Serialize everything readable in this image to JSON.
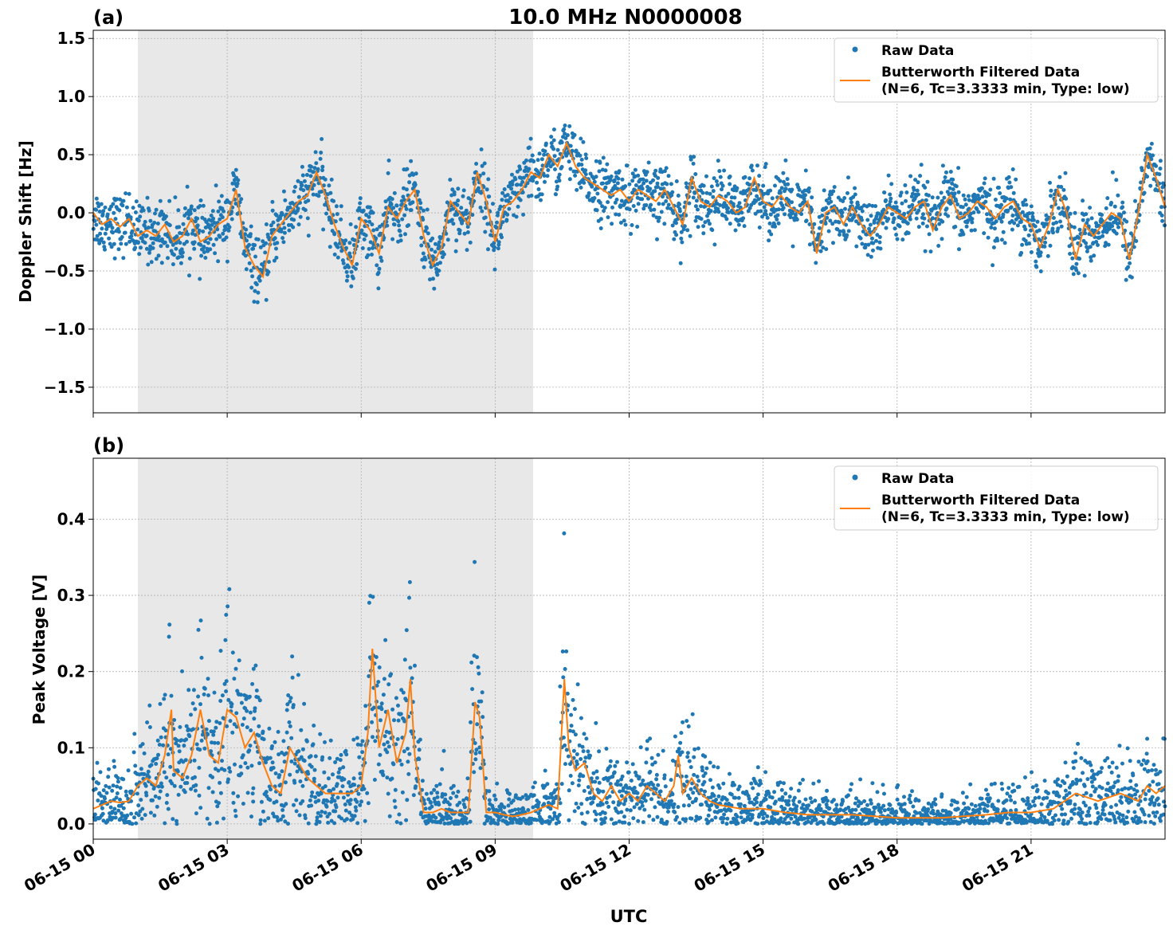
{
  "figure": {
    "title": "10.0 MHz N0000008",
    "xlabel": "UTC",
    "x_tick_labels": [
      "06-15 00",
      "06-15 03",
      "06-15 06",
      "06-15 09",
      "06-15 12",
      "06-15 15",
      "06-15 18",
      "06-15 21"
    ]
  },
  "colors": {
    "raw": "#1f77b4",
    "filtered": "#ff7f0e",
    "shade": "#e8e8e8",
    "grid": "#b0b0b0"
  },
  "chart_data": [
    {
      "type": "scatter",
      "panel_label": "(a)",
      "title": "10.0 MHz N0000008",
      "xlabel": "UTC",
      "ylabel": "Doppler Shift [Hz]",
      "x_unit": "hours since 06-15 00 UTC",
      "xlim": [
        0,
        24
      ],
      "ylim": [
        -1.72,
        1.57
      ],
      "y_ticks": [
        -1.5,
        -1.0,
        -0.5,
        0.0,
        0.5,
        1.0,
        1.5
      ],
      "y_tick_labels": [
        "−1.5",
        "−1.0",
        "−0.5",
        "0.0",
        "0.5",
        "1.0",
        "1.5"
      ],
      "grid": true,
      "legend_position": "top-right",
      "shaded_interval": [
        1.0,
        9.85
      ],
      "legend": [
        {
          "label": "Raw Data",
          "kind": "marker"
        },
        {
          "label": "Butterworth Filtered Data",
          "label2": "(N=6, Tc=3.3333 min, Type: low)",
          "kind": "line"
        }
      ],
      "series": [
        {
          "name": "Butterworth Filtered Data",
          "x": [
            0.0,
            0.2,
            0.4,
            0.6,
            0.8,
            1.0,
            1.2,
            1.4,
            1.6,
            1.8,
            2.0,
            2.2,
            2.4,
            2.6,
            2.8,
            3.0,
            3.2,
            3.4,
            3.6,
            3.8,
            4.0,
            4.2,
            4.4,
            4.6,
            4.8,
            5.0,
            5.2,
            5.4,
            5.6,
            5.8,
            6.0,
            6.2,
            6.4,
            6.6,
            6.8,
            7.0,
            7.2,
            7.4,
            7.6,
            7.8,
            8.0,
            8.2,
            8.4,
            8.6,
            8.8,
            9.0,
            9.2,
            9.4,
            9.6,
            9.8,
            10.0,
            10.2,
            10.4,
            10.6,
            10.8,
            11.0,
            11.2,
            11.4,
            11.6,
            11.8,
            12.0,
            12.2,
            12.4,
            12.6,
            12.8,
            13.0,
            13.2,
            13.4,
            13.6,
            13.8,
            14.0,
            14.2,
            14.4,
            14.6,
            14.8,
            15.0,
            15.2,
            15.4,
            15.6,
            15.8,
            16.0,
            16.2,
            16.4,
            16.6,
            16.8,
            17.0,
            17.2,
            17.4,
            17.6,
            17.8,
            18.0,
            18.2,
            18.4,
            18.6,
            18.8,
            19.0,
            19.2,
            19.4,
            19.6,
            19.8,
            20.0,
            20.2,
            20.4,
            20.6,
            20.8,
            21.0,
            21.2,
            21.4,
            21.6,
            21.8,
            22.0,
            22.2,
            22.4,
            22.6,
            22.8,
            23.0,
            23.2,
            23.4,
            23.6,
            23.8,
            24.0
          ],
          "y": [
            0.0,
            -0.1,
            -0.05,
            -0.12,
            -0.05,
            -0.2,
            -0.15,
            -0.2,
            -0.1,
            -0.25,
            -0.2,
            -0.05,
            -0.25,
            -0.2,
            -0.1,
            -0.05,
            0.2,
            -0.3,
            -0.45,
            -0.55,
            -0.2,
            -0.1,
            0.0,
            0.1,
            0.15,
            0.35,
            0.15,
            -0.1,
            -0.3,
            -0.45,
            -0.05,
            -0.15,
            -0.35,
            0.05,
            -0.05,
            0.1,
            0.2,
            -0.2,
            -0.45,
            -0.3,
            0.1,
            0.0,
            -0.1,
            0.35,
            0.1,
            -0.25,
            0.05,
            0.1,
            0.2,
            0.35,
            0.3,
            0.5,
            0.4,
            0.6,
            0.4,
            0.3,
            0.25,
            0.2,
            0.15,
            0.2,
            0.1,
            0.2,
            0.15,
            0.1,
            0.2,
            0.05,
            -0.1,
            0.3,
            0.1,
            0.05,
            0.15,
            0.1,
            0.0,
            0.05,
            0.3,
            0.1,
            0.05,
            0.15,
            0.05,
            0.0,
            0.1,
            -0.35,
            0.0,
            0.05,
            -0.1,
            0.05,
            -0.1,
            -0.2,
            -0.1,
            0.05,
            0.0,
            -0.05,
            0.05,
            0.1,
            -0.15,
            0.05,
            0.15,
            -0.05,
            0.0,
            0.1,
            0.05,
            -0.05,
            0.05,
            0.1,
            -0.05,
            -0.1,
            -0.3,
            -0.1,
            0.2,
            0.0,
            -0.4,
            -0.1,
            -0.2,
            -0.1,
            0.0,
            -0.05,
            -0.4,
            0.0,
            0.5,
            0.3,
            0.05
          ]
        }
      ]
    },
    {
      "type": "scatter",
      "panel_label": "(b)",
      "xlabel": "UTC",
      "ylabel": "Peak Voltage [V]",
      "x_unit": "hours since 06-15 00 UTC",
      "xlim": [
        0,
        24
      ],
      "ylim": [
        -0.02,
        0.48
      ],
      "y_ticks": [
        0.0,
        0.1,
        0.2,
        0.3,
        0.4
      ],
      "y_tick_labels": [
        "0.0",
        "0.1",
        "0.2",
        "0.3",
        "0.4"
      ],
      "grid": true,
      "legend_position": "top-right",
      "shaded_interval": [
        1.0,
        9.85
      ],
      "legend": [
        {
          "label": "Raw Data",
          "kind": "marker"
        },
        {
          "label": "Butterworth Filtered Data",
          "label2": "(N=6, Tc=3.3333 min, Type: low)",
          "kind": "line"
        }
      ],
      "series": [
        {
          "name": "Butterworth Filtered Data",
          "x": [
            0.0,
            0.2,
            0.4,
            0.6,
            0.8,
            1.0,
            1.2,
            1.4,
            1.6,
            1.75,
            1.8,
            2.0,
            2.2,
            2.4,
            2.6,
            2.8,
            3.0,
            3.2,
            3.4,
            3.6,
            3.8,
            4.0,
            4.2,
            4.4,
            4.6,
            4.8,
            5.0,
            5.2,
            5.4,
            5.6,
            5.8,
            6.0,
            6.15,
            6.25,
            6.4,
            6.6,
            6.8,
            7.0,
            7.1,
            7.2,
            7.4,
            7.6,
            7.8,
            8.0,
            8.2,
            8.4,
            8.55,
            8.65,
            8.8,
            9.0,
            9.2,
            9.4,
            9.6,
            9.8,
            10.0,
            10.2,
            10.4,
            10.55,
            10.65,
            10.8,
            11.0,
            11.2,
            11.4,
            11.6,
            11.8,
            12.0,
            12.2,
            12.4,
            12.6,
            12.8,
            13.0,
            13.1,
            13.2,
            13.4,
            13.6,
            13.8,
            14.0,
            14.5,
            15.0,
            15.5,
            16.0,
            16.5,
            17.0,
            17.5,
            18.0,
            18.5,
            19.0,
            19.5,
            20.0,
            20.5,
            21.0,
            21.5,
            22.0,
            22.5,
            23.0,
            23.4,
            23.6,
            23.8,
            24.0
          ],
          "y": [
            0.02,
            0.025,
            0.03,
            0.028,
            0.03,
            0.05,
            0.06,
            0.05,
            0.09,
            0.15,
            0.07,
            0.06,
            0.09,
            0.15,
            0.09,
            0.08,
            0.15,
            0.14,
            0.1,
            0.12,
            0.08,
            0.05,
            0.04,
            0.1,
            0.08,
            0.06,
            0.05,
            0.04,
            0.04,
            0.04,
            0.04,
            0.05,
            0.12,
            0.23,
            0.1,
            0.15,
            0.08,
            0.12,
            0.19,
            0.09,
            0.015,
            0.015,
            0.02,
            0.015,
            0.015,
            0.015,
            0.16,
            0.14,
            0.015,
            0.015,
            0.012,
            0.01,
            0.012,
            0.015,
            0.02,
            0.025,
            0.02,
            0.19,
            0.1,
            0.07,
            0.08,
            0.04,
            0.03,
            0.05,
            0.03,
            0.04,
            0.03,
            0.05,
            0.04,
            0.03,
            0.05,
            0.09,
            0.04,
            0.06,
            0.04,
            0.03,
            0.025,
            0.02,
            0.02,
            0.015,
            0.012,
            0.012,
            0.012,
            0.01,
            0.008,
            0.008,
            0.008,
            0.01,
            0.012,
            0.015,
            0.015,
            0.02,
            0.04,
            0.03,
            0.04,
            0.03,
            0.05,
            0.04,
            0.05
          ]
        }
      ]
    }
  ]
}
